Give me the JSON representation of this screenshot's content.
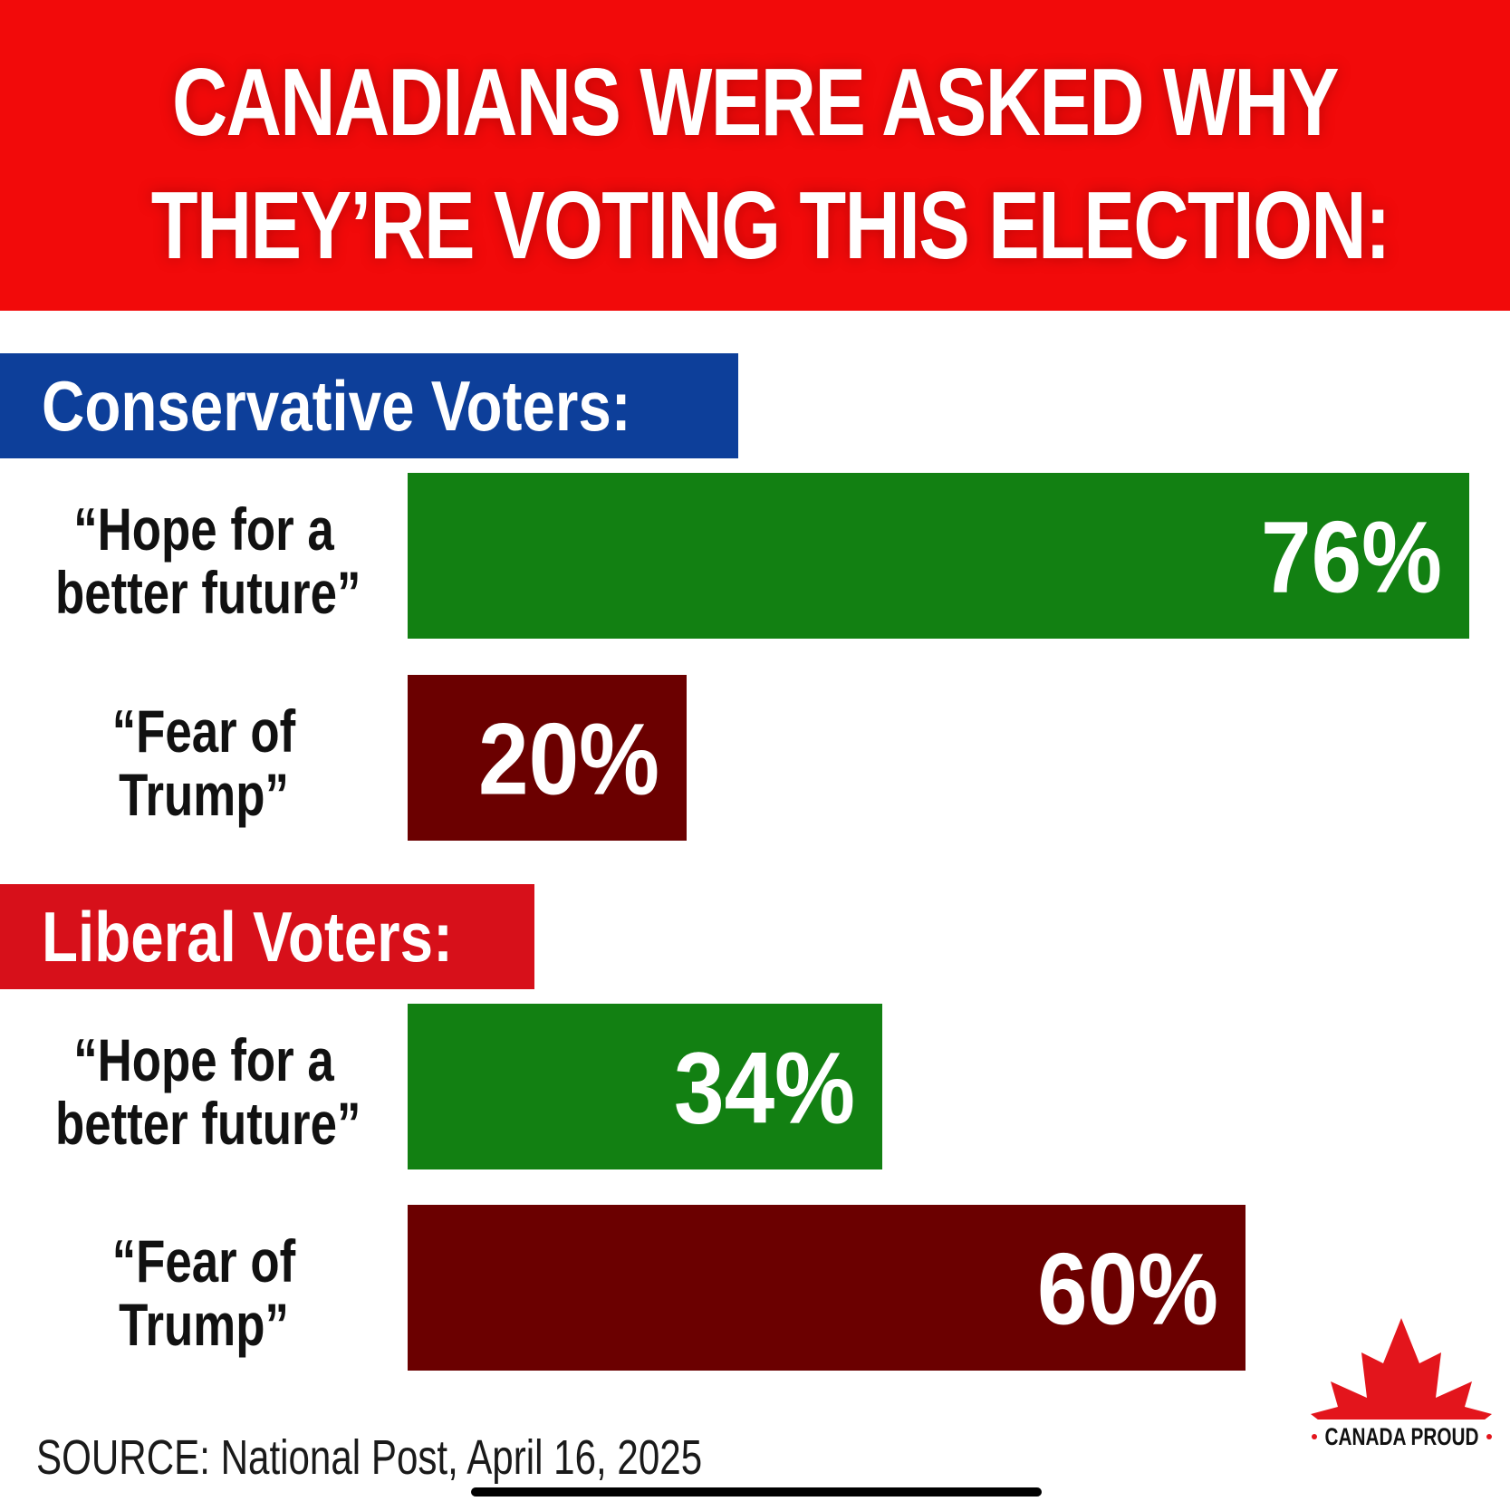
{
  "title_lines": [
    "CANADIANS WERE ASKED WHY",
    "THEY’RE VOTING THIS ELECTION:"
  ],
  "colors": {
    "banner": "#f20a0a",
    "conservative": "#0d3f9a",
    "liberal": "#d7101a",
    "hope": "#128012",
    "fear": "#6b0000"
  },
  "chart_data": {
    "type": "bar",
    "orientation": "horizontal",
    "xlim": [
      0,
      76
    ],
    "groups": [
      {
        "name": "Conservative Voters:",
        "bars": [
          {
            "label_lines": [
              "“Hope for a",
              "better future”"
            ],
            "value": 76,
            "value_label": "76%",
            "color": "#128012"
          },
          {
            "label_lines": [
              "“Fear of",
              "Trump”"
            ],
            "value": 20,
            "value_label": "20%",
            "color": "#6b0000"
          }
        ]
      },
      {
        "name": "Liberal Voters:",
        "bars": [
          {
            "label_lines": [
              "“Hope for a",
              "better future”"
            ],
            "value": 34,
            "value_label": "34%",
            "color": "#128012"
          },
          {
            "label_lines": [
              "“Fear of",
              "Trump”"
            ],
            "value": 60,
            "value_label": "60%",
            "color": "#6b0000"
          }
        ]
      }
    ]
  },
  "source": "SOURCE: National Post, April 16, 2025",
  "logo_text": "CANADA PROUD"
}
